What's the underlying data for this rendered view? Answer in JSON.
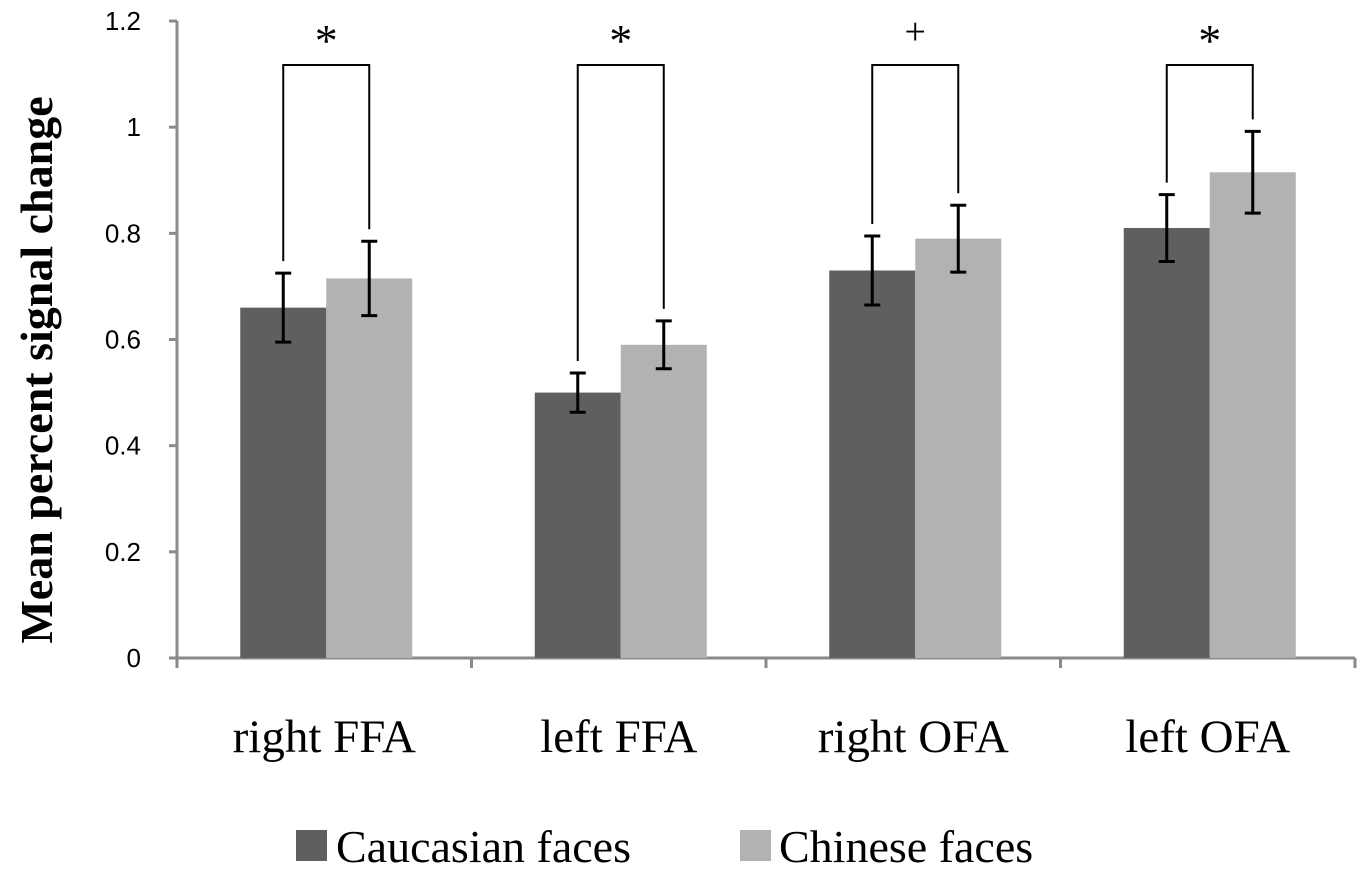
{
  "chart_data": {
    "type": "bar",
    "title": "",
    "xlabel": "",
    "ylabel": "Mean percent signal change",
    "ylim": [
      0,
      1.2
    ],
    "yticks": [
      "0",
      "0.2",
      "0.4",
      "0.6",
      "0.8",
      "1",
      "1.2"
    ],
    "grid": false,
    "legend_position": "bottom",
    "categories": [
      "right FFA",
      "left FFA",
      "right OFA",
      "left OFA"
    ],
    "series": [
      {
        "name": "Caucasian faces",
        "color": "#5f5f5f",
        "values": [
          0.66,
          0.5,
          0.73,
          0.81
        ],
        "errors": [
          0.065,
          0.037,
          0.065,
          0.063
        ]
      },
      {
        "name": "Chinese faces",
        "color": "#b2b2b2",
        "values": [
          0.715,
          0.59,
          0.79,
          0.915
        ],
        "errors": [
          0.07,
          0.045,
          0.063,
          0.077
        ]
      }
    ],
    "significance": [
      "*",
      "*",
      "+",
      "*"
    ]
  }
}
